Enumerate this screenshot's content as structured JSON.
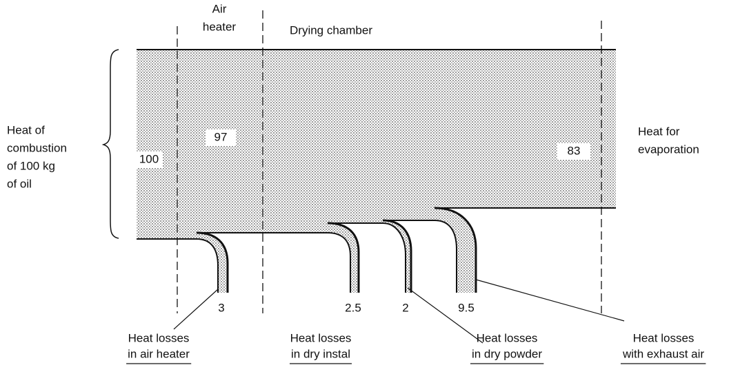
{
  "columns": {
    "air_heater": [
      "Air",
      "heater"
    ],
    "drying_chamber": "Drying chamber"
  },
  "input": {
    "label": [
      "Heat of",
      "combustion",
      "of 100 kg",
      "of oil"
    ],
    "value": 100
  },
  "after_air_heater": 97,
  "output": {
    "label": [
      "Heat for",
      "evaporation"
    ],
    "value": 83
  },
  "losses": [
    {
      "value": 3,
      "label": [
        "Heat losses",
        "in air heater"
      ]
    },
    {
      "value": 2.5,
      "label": [
        "Heat losses",
        "in dry instal"
      ]
    },
    {
      "value": 2,
      "label": [
        "Heat losses",
        "in dry powder"
      ]
    },
    {
      "value": 9.5,
      "label": [
        "Heat losses",
        "with exhaust air"
      ]
    }
  ]
}
